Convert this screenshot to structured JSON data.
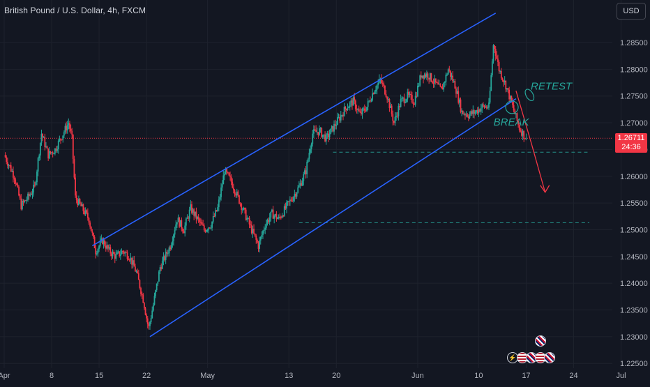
{
  "header": {
    "title": "British Pound / U.S. Dollar, 4h, FXCM",
    "currency_button": "USD"
  },
  "last_price": {
    "value": "1.26711",
    "countdown": "24:36"
  },
  "colors": {
    "background": "#131722",
    "bull": "#26a69a",
    "bear": "#f23645",
    "channel": "#2962ff",
    "annotation": "#26a69a",
    "arrow": "#f23645",
    "text": "#b2b5be"
  },
  "chart_data": {
    "type": "candlestick",
    "symbol": "GBPUSD",
    "interval": "4h",
    "source": "FXCM",
    "y_axis": {
      "range": [
        1.2225,
        1.2885
      ],
      "ticks": [
        "1.28500",
        "1.28000",
        "1.27500",
        "1.27000",
        "1.26500",
        "1.26000",
        "1.25500",
        "1.25000",
        "1.24500",
        "1.24000",
        "1.23500",
        "1.23000",
        "1.22500"
      ]
    },
    "x_axis": {
      "ticks": [
        {
          "label": "Apr",
          "day": 0
        },
        {
          "label": "8",
          "day": 7
        },
        {
          "label": "15",
          "day": 14
        },
        {
          "label": "22",
          "day": 21
        },
        {
          "label": "May",
          "day": 30
        },
        {
          "label": "13",
          "day": 42
        },
        {
          "label": "20",
          "day": 49
        },
        {
          "label": "Jun",
          "day": 61
        },
        {
          "label": "10",
          "day": 70
        },
        {
          "label": "17",
          "day": 77
        },
        {
          "label": "24",
          "day": 84
        },
        {
          "label": "Jul",
          "day": 91
        }
      ]
    },
    "price_path": [
      [
        0.0,
        1.264
      ],
      [
        1.5,
        1.26
      ],
      [
        2.5,
        1.2545
      ],
      [
        3.5,
        1.256
      ],
      [
        4.5,
        1.258
      ],
      [
        5.5,
        1.268
      ],
      [
        6.5,
        1.264
      ],
      [
        7.5,
        1.265
      ],
      [
        8.5,
        1.2675
      ],
      [
        9.5,
        1.27
      ],
      [
        10.0,
        1.267
      ],
      [
        10.5,
        1.256
      ],
      [
        11.5,
        1.254
      ],
      [
        12.5,
        1.252
      ],
      [
        13.5,
        1.246
      ],
      [
        14.5,
        1.248
      ],
      [
        15.5,
        1.246
      ],
      [
        16.5,
        1.245
      ],
      [
        17.5,
        1.246
      ],
      [
        18.5,
        1.245
      ],
      [
        19.5,
        1.242
      ],
      [
        20.5,
        1.237
      ],
      [
        21.3,
        1.2315
      ],
      [
        22.0,
        1.236
      ],
      [
        23.0,
        1.243
      ],
      [
        24.5,
        1.247
      ],
      [
        25.5,
        1.252
      ],
      [
        26.5,
        1.25
      ],
      [
        27.5,
        1.254
      ],
      [
        28.5,
        1.252
      ],
      [
        29.5,
        1.25
      ],
      [
        30.5,
        1.251
      ],
      [
        31.5,
        1.254
      ],
      [
        32.5,
        1.261
      ],
      [
        33.5,
        1.259
      ],
      [
        34.5,
        1.256
      ],
      [
        35.5,
        1.253
      ],
      [
        36.5,
        1.25
      ],
      [
        37.5,
        1.247
      ],
      [
        38.5,
        1.251
      ],
      [
        39.5,
        1.253
      ],
      [
        40.5,
        1.252
      ],
      [
        41.5,
        1.254
      ],
      [
        42.5,
        1.256
      ],
      [
        43.5,
        1.258
      ],
      [
        44.5,
        1.261
      ],
      [
        45.5,
        1.268
      ],
      [
        46.5,
        1.2685
      ],
      [
        47.5,
        1.267
      ],
      [
        48.5,
        1.269
      ],
      [
        49.5,
        1.271
      ],
      [
        50.5,
        1.273
      ],
      [
        51.5,
        1.274
      ],
      [
        52.5,
        1.2715
      ],
      [
        53.5,
        1.273
      ],
      [
        54.5,
        1.276
      ],
      [
        55.5,
        1.278
      ],
      [
        56.5,
        1.275
      ],
      [
        57.5,
        1.27
      ],
      [
        58.5,
        1.274
      ],
      [
        59.5,
        1.275
      ],
      [
        60.5,
        1.274
      ],
      [
        61.5,
        1.279
      ],
      [
        62.5,
        1.279
      ],
      [
        63.5,
        1.2775
      ],
      [
        64.5,
        1.276
      ],
      [
        65.5,
        1.28
      ],
      [
        66.5,
        1.277
      ],
      [
        67.5,
        1.272
      ],
      [
        68.5,
        1.2715
      ],
      [
        69.5,
        1.272
      ],
      [
        70.5,
        1.273
      ],
      [
        71.5,
        1.273
      ],
      [
        72.2,
        1.285
      ],
      [
        73.0,
        1.28
      ],
      [
        74.0,
        1.277
      ],
      [
        75.0,
        1.273
      ],
      [
        76.0,
        1.269
      ],
      [
        77.0,
        1.2671
      ]
    ],
    "channel": {
      "upper": {
        "from": [
          13.0,
          1.247
        ],
        "to": [
          72.5,
          1.2905
        ]
      },
      "lower": {
        "from": [
          21.5,
          1.23
        ],
        "to": [
          75.5,
          1.2745
        ]
      }
    },
    "horizontal_levels": [
      {
        "price": 1.2645,
        "from_day": 48.5,
        "to_day": 90,
        "style": "dashed"
      },
      {
        "price": 1.2513,
        "from_day": 43.5,
        "to_day": 100,
        "style": "dashed"
      }
    ],
    "current_price_line": 1.2671,
    "projection_arrow": {
      "from": [
        75.5,
        1.276
      ],
      "to": [
        77.8,
        1.266
      ],
      "to2": [
        79.8,
        1.257
      ]
    },
    "annotations": [
      {
        "text": "RETEST",
        "day": 78.5,
        "price": 1.2762
      },
      {
        "text": "BREAK",
        "day": 74.8,
        "price": 1.2695
      }
    ]
  },
  "events": {
    "row1": [
      "uk-flag-icon"
    ],
    "row2": [
      "flash-icon",
      "us-flag-icon",
      "uk-flag-icon",
      "us-flag-icon",
      "uk-flag-icon"
    ]
  }
}
